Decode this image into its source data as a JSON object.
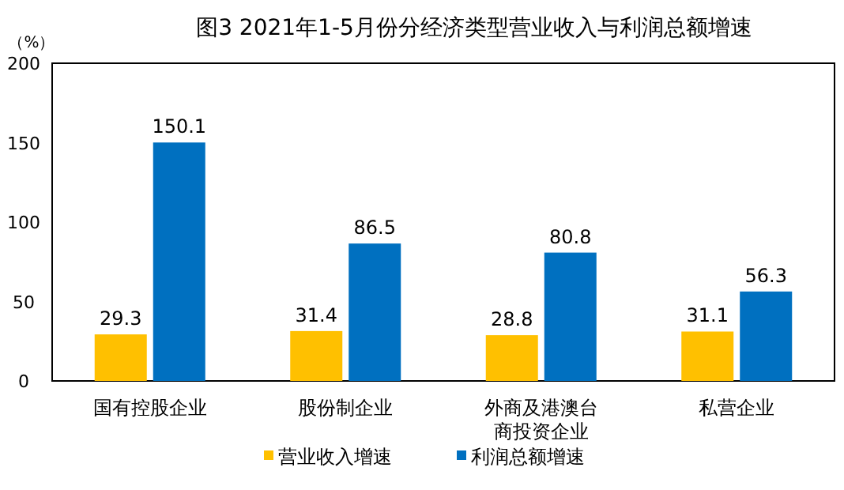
{
  "chart_data": {
    "type": "bar",
    "title": "图3  2021年1-5月份分经济类型营业收入与利润总额增速",
    "ylabel": "（%）",
    "categories": [
      "国有控股企业",
      "股份制企业",
      "外商及港澳台商投资企业",
      "私营企业"
    ],
    "series": [
      {
        "name": "营业收入增速",
        "color": "#ffc000",
        "values": [
          29.3,
          31.4,
          28.8,
          31.1
        ]
      },
      {
        "name": "利润总额增速",
        "color": "#0070c0",
        "values": [
          150.1,
          86.5,
          80.8,
          56.3
        ]
      }
    ],
    "ylim": [
      0,
      200
    ],
    "yticks": [
      0,
      50,
      100,
      150,
      200
    ],
    "data_labels": true,
    "legend": "bottom",
    "grid": false
  }
}
